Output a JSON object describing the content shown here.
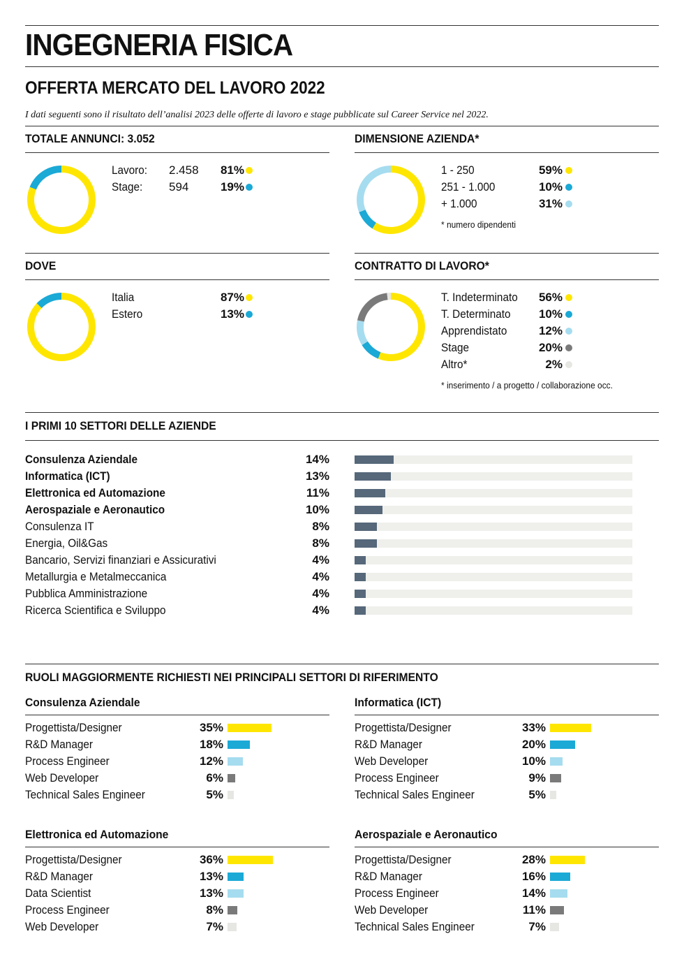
{
  "title": "INGEGNERIA FISICA",
  "subtitle": "OFFERTA MERCATO DEL LAVORO 2022",
  "intro": "I dati seguenti sono il risultato dell’analisi 2023 delle offerte di lavoro e stage pubblicate sul Career Service nel 2022.",
  "colors": {
    "yellow": "#ffe600",
    "blue": "#1ba9d6",
    "lightblue": "#a6dcef",
    "gray": "#7a7a7a",
    "lightgray": "#e6e6e2",
    "sector": "#56687a",
    "track": "#efefeb"
  },
  "chart_data": [
    {
      "type": "pie",
      "title": "TOTALE ANNUNCI: 3.052",
      "slices": [
        {
          "name": "Lavoro:",
          "count": "2.458",
          "pct": "81%",
          "value": 81,
          "color": "yellow"
        },
        {
          "name": "Stage:",
          "count": "594",
          "pct": "19%",
          "value": 19,
          "color": "blue"
        }
      ]
    },
    {
      "type": "pie",
      "title": "DIMENSIONE AZIENDA*",
      "note": "* numero dipendenti",
      "slices": [
        {
          "name": "1 - 250",
          "pct": "59%",
          "value": 59,
          "color": "yellow"
        },
        {
          "name": "251 - 1.000",
          "pct": "10%",
          "value": 10,
          "color": "blue"
        },
        {
          "name": "+ 1.000",
          "pct": "31%",
          "value": 31,
          "color": "lightblue"
        }
      ]
    },
    {
      "type": "pie",
      "title": "DOVE",
      "slices": [
        {
          "name": "Italia",
          "pct": "87%",
          "value": 87,
          "color": "yellow"
        },
        {
          "name": "Estero",
          "pct": "13%",
          "value": 13,
          "color": "blue"
        }
      ]
    },
    {
      "type": "pie",
      "title": "CONTRATTO DI LAVORO*",
      "note": "* inserimento / a progetto / collaborazione occ.",
      "slices": [
        {
          "name": "T. Indeterminato",
          "pct": "56%",
          "value": 56,
          "color": "yellow"
        },
        {
          "name": "T. Determinato",
          "pct": "10%",
          "value": 10,
          "color": "blue"
        },
        {
          "name": "Apprendistato",
          "pct": "12%",
          "value": 12,
          "color": "lightblue"
        },
        {
          "name": "Stage",
          "pct": "20%",
          "value": 20,
          "color": "gray"
        },
        {
          "name": "Altro*",
          "pct": "2%",
          "value": 2,
          "color": "lightgray"
        }
      ]
    },
    {
      "type": "bar",
      "title": "I PRIMI 10 SETTORI DELLE AZIENDE",
      "xlim": [
        0,
        100
      ],
      "categories": [
        "Consulenza Aziendale",
        "Informatica (ICT)",
        "Elettronica ed Automazione",
        "Aerospaziale e Aeronautico",
        "Consulenza IT",
        "Energia, Oil&Gas",
        "Bancario, Servizi finanziari e Assicurativi",
        "Metallurgia e Metalmeccanica",
        "Pubblica Amministrazione",
        "Ricerca Scientifica e Sviluppo"
      ],
      "labels": [
        "14%",
        "13%",
        "11%",
        "10%",
        "8%",
        "8%",
        "4%",
        "4%",
        "4%",
        "4%"
      ],
      "values": [
        14,
        13,
        11,
        10,
        8,
        8,
        4,
        4,
        4,
        4
      ],
      "bold": [
        true,
        true,
        true,
        true,
        false,
        false,
        false,
        false,
        false,
        false
      ]
    },
    {
      "type": "bar",
      "title": "Consulenza Aziendale",
      "categories": [
        "Progettista/Designer",
        "R&D Manager",
        "Process Engineer",
        "Web Developer",
        "Technical Sales Engineer"
      ],
      "labels": [
        "35%",
        "18%",
        "12%",
        "6%",
        "5%"
      ],
      "values": [
        35,
        18,
        12,
        6,
        5
      ]
    },
    {
      "type": "bar",
      "title": "Informatica (ICT)",
      "categories": [
        "Progettista/Designer",
        "R&D Manager",
        "Web Developer",
        "Process Engineer",
        "Technical Sales Engineer"
      ],
      "labels": [
        "33%",
        "20%",
        "10%",
        "9%",
        "5%"
      ],
      "values": [
        33,
        20,
        10,
        9,
        5
      ]
    },
    {
      "type": "bar",
      "title": "Elettronica ed Automazione",
      "categories": [
        "Progettista/Designer",
        "R&D Manager",
        "Data Scientist",
        "Process Engineer",
        "Web Developer"
      ],
      "labels": [
        "36%",
        "13%",
        "13%",
        "8%",
        "7%"
      ],
      "values": [
        36,
        13,
        13,
        8,
        7
      ]
    },
    {
      "type": "bar",
      "title": "Aerospaziale e Aeronautico",
      "categories": [
        "Progettista/Designer",
        "R&D Manager",
        "Process Engineer",
        "Web Developer",
        "Technical Sales Engineer"
      ],
      "labels": [
        "28%",
        "16%",
        "14%",
        "11%",
        "7%"
      ],
      "values": [
        28,
        16,
        14,
        11,
        7
      ]
    }
  ],
  "roles_title": "RUOLI MAGGIORMENTE RICHIESTI NEI PRINCIPALI SETTORI DI RIFERIMENTO"
}
